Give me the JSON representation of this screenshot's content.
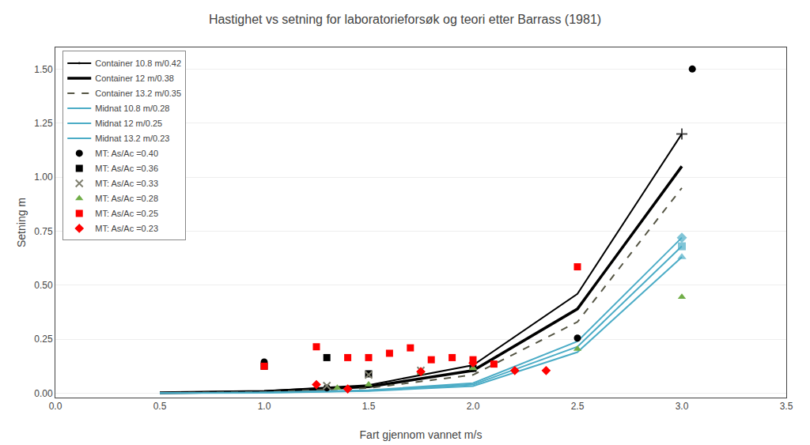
{
  "chart_data": {
    "type": "line",
    "title": "Hastighet vs setning for laboratorieforsøk og teori etter Barrass (1981)",
    "x_label": "Fart gjennom vannet m/s",
    "y_label": "Setning m",
    "xlim": [
      0,
      3.5
    ],
    "ylim": [
      -0.02,
      1.6
    ],
    "xticks": [
      {
        "value": 0,
        "label": "0.0"
      },
      0.5,
      {
        "value": 1.0,
        "label": "1.0"
      },
      1.5,
      {
        "value": 2.0,
        "label": "2.0"
      },
      2.5,
      {
        "value": 3.0,
        "label": "3.0"
      },
      3.5
    ],
    "yticks": [
      {
        "value": 0,
        "label": "0.00"
      },
      0.25,
      {
        "value": 0.5,
        "label": "0.50"
      },
      0.75,
      {
        "value": 1.0,
        "label": "1.00"
      },
      1.25,
      {
        "value": 1.5,
        "label": "1.50"
      }
    ],
    "grid": "y",
    "legend": "upper left",
    "series": [
      {
        "name": "Container 10.8 m/0.42",
        "type": "line",
        "color": "#000000",
        "line_style": "solid",
        "marker": "plus",
        "x": [
          0.5,
          1.0,
          1.5,
          2.0,
          2.5,
          3.0
        ],
        "values": [
          0.003,
          0.01,
          0.038,
          0.13,
          0.46,
          1.2
        ]
      },
      {
        "name": "Container 12 m/0.38",
        "type": "line",
        "color": "#000000",
        "line_style": "solid",
        "x": [
          0.5,
          1.0,
          1.5,
          2.0,
          2.5,
          3.0
        ],
        "values": [
          0.002,
          0.008,
          0.03,
          0.105,
          0.39,
          1.05
        ]
      },
      {
        "name": "Container 13.2 m/0.35",
        "type": "line",
        "color": "#555544",
        "line_style": "dashed",
        "x": [
          0.5,
          1.0,
          1.5,
          2.0,
          2.5,
          3.0
        ],
        "values": [
          0.0015,
          0.006,
          0.024,
          0.085,
          0.33,
          0.95
        ]
      },
      {
        "name": "Midnat 10.8 m/0.28",
        "type": "line",
        "color": "#4bacc6",
        "line_style": "solid",
        "marker": "diamond",
        "x": [
          0.5,
          1.0,
          1.5,
          2.0,
          2.5,
          3.0
        ],
        "values": [
          0.001,
          0.004,
          0.014,
          0.047,
          0.24,
          0.72
        ]
      },
      {
        "name": "Midnat 12 m/0.25",
        "type": "line",
        "color": "#4bacc6",
        "line_style": "solid",
        "marker": "square",
        "x": [
          0.5,
          1.0,
          1.5,
          2.0,
          2.5,
          3.0
        ],
        "values": [
          0.0008,
          0.003,
          0.012,
          0.04,
          0.215,
          0.68
        ]
      },
      {
        "name": "Midnat 13.2 m/0.23",
        "type": "line",
        "color": "#4bacc6",
        "line_style": "solid",
        "marker": "triangle-up",
        "x": [
          0.5,
          1.0,
          1.5,
          2.0,
          2.5,
          3.0
        ],
        "values": [
          0.0006,
          0.002,
          0.01,
          0.033,
          0.19,
          0.63
        ]
      },
      {
        "name": "MT: As/Ac =0.40",
        "type": "scatter",
        "color": "#000000",
        "marker": "circle",
        "x": [
          1.0,
          1.3,
          2.5,
          3.05
        ],
        "values": [
          0.145,
          0.025,
          0.255,
          1.5
        ]
      },
      {
        "name": "MT: As/Ac =0.36",
        "type": "scatter",
        "color": "#000000",
        "marker": "square",
        "x": [
          1.0,
          1.3,
          1.5,
          2.0
        ],
        "values": [
          0.125,
          0.165,
          0.09,
          0.115
        ]
      },
      {
        "name": "MT: As/Ac =0.33",
        "type": "scatter",
        "color": "#808070",
        "marker": "x",
        "x": [
          1.3,
          1.5,
          1.75,
          2.0
        ],
        "values": [
          0.035,
          0.085,
          0.105,
          0.125
        ]
      },
      {
        "name": "MT: As/Ac =0.28",
        "type": "scatter",
        "color": "#70ad47",
        "marker": "triangle-up",
        "x": [
          1.35,
          1.5,
          1.75,
          2.0,
          2.5,
          3.0
        ],
        "values": [
          0.025,
          0.04,
          0.095,
          0.115,
          0.205,
          0.445
        ]
      },
      {
        "name": "MT: As/Ac =0.25",
        "type": "scatter",
        "color": "#ff0000",
        "marker": "square",
        "x": [
          1.0,
          1.25,
          1.4,
          1.5,
          1.6,
          1.7,
          1.8,
          1.9,
          2.0,
          2.1,
          2.5
        ],
        "values": [
          0.125,
          0.215,
          0.165,
          0.165,
          0.185,
          0.21,
          0.155,
          0.165,
          0.155,
          0.135,
          0.585
        ]
      },
      {
        "name": "MT: As/Ac =0.23",
        "type": "scatter",
        "color": "#ff0000",
        "marker": "diamond",
        "x": [
          1.25,
          1.4,
          1.75,
          2.0,
          2.2,
          2.35
        ],
        "values": [
          0.04,
          0.02,
          0.1,
          0.14,
          0.105,
          0.105
        ]
      }
    ]
  }
}
